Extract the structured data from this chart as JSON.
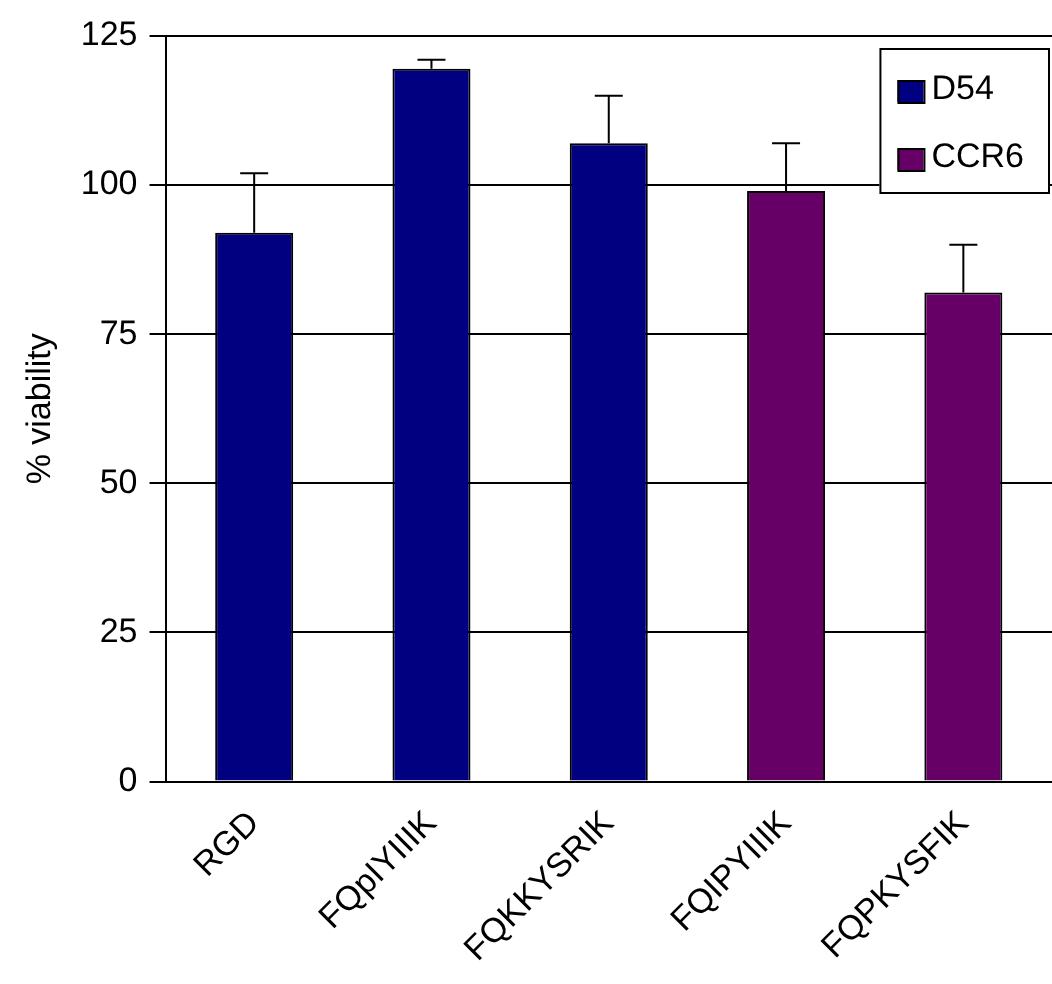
{
  "chart_data": {
    "type": "bar",
    "ylabel": "% viability",
    "categories": [
      "RGD",
      "FQpIYIIIK",
      "FQKKYSRIK",
      "FQIPYIIIK",
      "FQPKYSFIK"
    ],
    "series": [
      {
        "name": "D54",
        "color": "#000080",
        "values": [
          92,
          119.5,
          107,
          null,
          null
        ],
        "errors": [
          [
            92,
            102
          ],
          [
            119.5,
            121
          ],
          [
            107,
            115
          ],
          null,
          null
        ]
      },
      {
        "name": "CCR6",
        "color": "#660066",
        "values": [
          null,
          null,
          null,
          99,
          82
        ],
        "errors": [
          null,
          null,
          null,
          [
            99,
            107
          ],
          [
            82,
            90
          ]
        ]
      }
    ],
    "ylim": [
      0,
      125
    ],
    "yticks": [
      0,
      25,
      50,
      75,
      100,
      125
    ],
    "grid": "y",
    "legend": "top right"
  }
}
